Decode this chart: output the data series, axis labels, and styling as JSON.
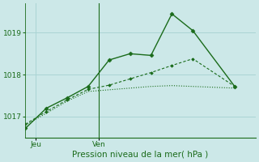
{
  "xlabel": "Pression niveau de la mer( hPa )",
  "bg_color": "#cce8e8",
  "grid_color": "#aad4d4",
  "line_color": "#1a6b1a",
  "yticks": [
    1017,
    1018,
    1019
  ],
  "ylim": [
    1016.5,
    1019.7
  ],
  "xlim": [
    0,
    11
  ],
  "series1_x": [
    0,
    1,
    2,
    3,
    4,
    5,
    6,
    7,
    8,
    10
  ],
  "series1_y": [
    1016.72,
    1017.2,
    1017.45,
    1017.72,
    1018.35,
    1018.5,
    1018.46,
    1019.45,
    1019.05,
    1017.72
  ],
  "series2_x": [
    0,
    1,
    2,
    3,
    4,
    5,
    6,
    7,
    8,
    10
  ],
  "series2_y": [
    1016.82,
    1017.12,
    1017.4,
    1017.65,
    1017.75,
    1017.9,
    1018.05,
    1018.22,
    1018.38,
    1017.72
  ],
  "series3_x": [
    0,
    1,
    2,
    3,
    4,
    5,
    6,
    7,
    8,
    10
  ],
  "series3_y": [
    1016.8,
    1017.08,
    1017.37,
    1017.6,
    1017.64,
    1017.68,
    1017.72,
    1017.74,
    1017.72,
    1017.68
  ],
  "jeu_x": 0.5,
  "ven_x": 3.5,
  "vline_x": 3.5
}
